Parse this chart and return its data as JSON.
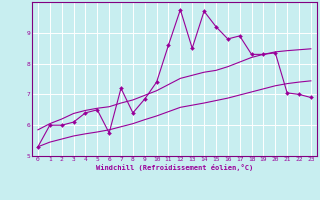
{
  "xlabel": "Windchill (Refroidissement éolien,°C)",
  "background_color": "#c8eef0",
  "grid_color": "#ffffff",
  "line_color": "#990099",
  "spine_color": "#800080",
  "x_data": [
    0,
    1,
    2,
    3,
    4,
    5,
    6,
    7,
    8,
    9,
    10,
    11,
    12,
    13,
    14,
    15,
    16,
    17,
    18,
    19,
    20,
    21,
    22,
    23
  ],
  "y_main": [
    5.3,
    6.0,
    6.0,
    6.1,
    6.4,
    6.5,
    5.75,
    7.2,
    6.4,
    6.85,
    7.4,
    8.6,
    9.75,
    8.5,
    9.7,
    9.2,
    8.8,
    8.9,
    8.3,
    8.3,
    8.35,
    7.05,
    7.0,
    6.9
  ],
  "y_upper": [
    5.85,
    6.05,
    6.2,
    6.38,
    6.48,
    6.55,
    6.6,
    6.72,
    6.82,
    6.97,
    7.12,
    7.32,
    7.52,
    7.62,
    7.72,
    7.78,
    7.9,
    8.05,
    8.2,
    8.3,
    8.38,
    8.42,
    8.45,
    8.48
  ],
  "y_lower": [
    5.3,
    5.45,
    5.55,
    5.65,
    5.72,
    5.78,
    5.85,
    5.95,
    6.05,
    6.18,
    6.3,
    6.44,
    6.58,
    6.65,
    6.72,
    6.8,
    6.88,
    6.98,
    7.08,
    7.18,
    7.28,
    7.35,
    7.4,
    7.44
  ],
  "xlim": [
    -0.5,
    23.5
  ],
  "ylim": [
    5.0,
    10.0
  ],
  "yticks": [
    5,
    6,
    7,
    8,
    9
  ],
  "xticks": [
    0,
    1,
    2,
    3,
    4,
    5,
    6,
    7,
    8,
    9,
    10,
    11,
    12,
    13,
    14,
    15,
    16,
    17,
    18,
    19,
    20,
    21,
    22,
    23
  ]
}
